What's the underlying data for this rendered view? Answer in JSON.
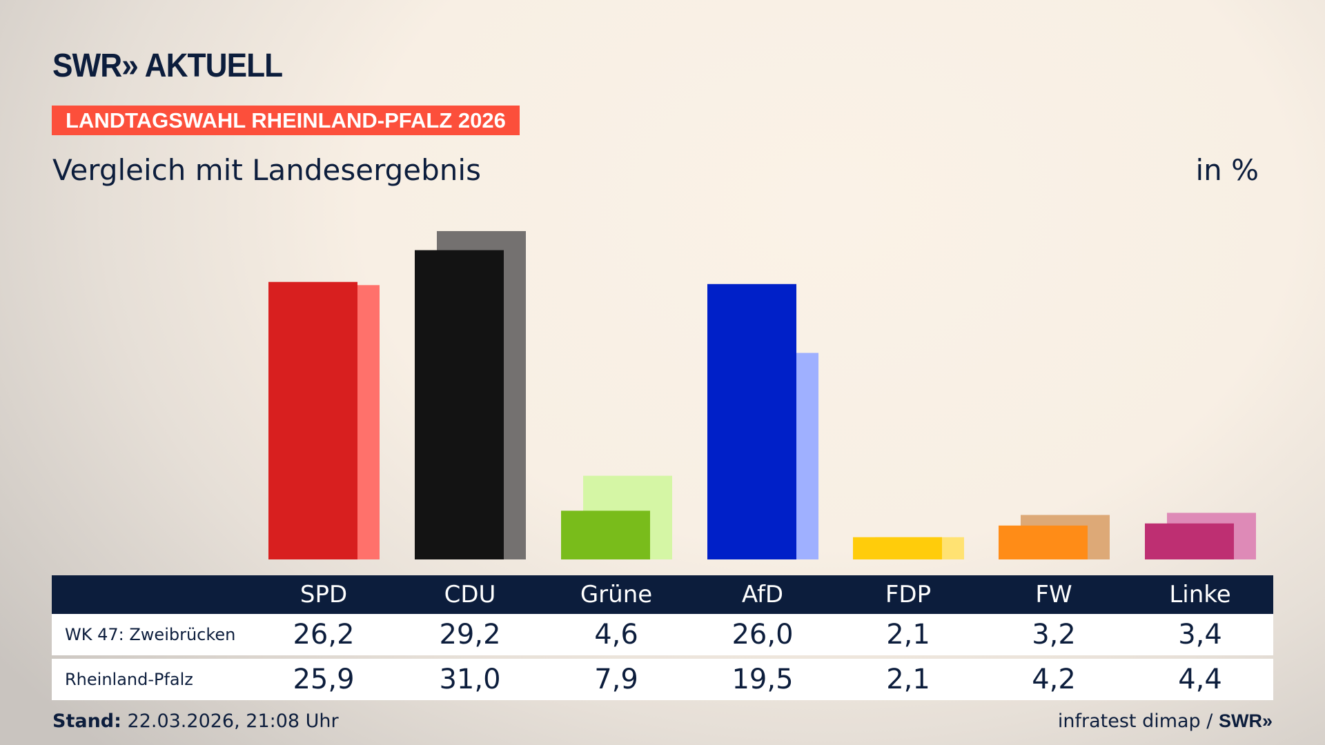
{
  "header": {
    "logo": "SWR» AKTUELL",
    "banner": "LANDTAGSWAHL RHEINLAND-PFALZ 2026",
    "subtitle": "Vergleich mit Landesergebnis",
    "unit": "in %"
  },
  "chart_data": {
    "type": "bar",
    "title": "Vergleich mit Landesergebnis",
    "ylabel": "in %",
    "ylim": [
      0,
      31
    ],
    "grid": false,
    "categories": [
      "SPD",
      "CDU",
      "Grüne",
      "AfD",
      "FDP",
      "FW",
      "Linke"
    ],
    "series": [
      {
        "name": "WK 47: Zweibrücken",
        "values": [
          26.2,
          29.2,
          4.6,
          26.0,
          2.1,
          3.2,
          3.4
        ],
        "colors": [
          "#d81f1f",
          "#131313",
          "#79bc1b",
          "#0020c8",
          "#ffcc0b",
          "#ff8c17",
          "#be2f72"
        ]
      },
      {
        "name": "Rheinland-Pfalz",
        "values": [
          25.9,
          31.0,
          7.9,
          19.5,
          2.1,
          4.2,
          4.4
        ],
        "colors": [
          "#ff716b",
          "#747170",
          "#d5f6a5",
          "#9fb0ff",
          "#ffe272",
          "#dda977",
          "#de8ab7"
        ]
      }
    ]
  },
  "table": {
    "headers": [
      "SPD",
      "CDU",
      "Grüne",
      "AfD",
      "FDP",
      "FW",
      "Linke"
    ],
    "rows": [
      {
        "label": "WK 47: Zweibrücken",
        "values": [
          "26,2",
          "29,2",
          "4,6",
          "26,0",
          "2,1",
          "3,2",
          "3,4"
        ]
      },
      {
        "label": "Rheinland-Pfalz",
        "values": [
          "25,9",
          "31,0",
          "7,9",
          "19,5",
          "2,1",
          "4,2",
          "4,4"
        ]
      }
    ]
  },
  "footer": {
    "stand_label": "Stand:",
    "stand_value": "22.03.2026, 21:08 Uhr",
    "source": "infratest dimap /",
    "source_logo": "SWR»"
  }
}
